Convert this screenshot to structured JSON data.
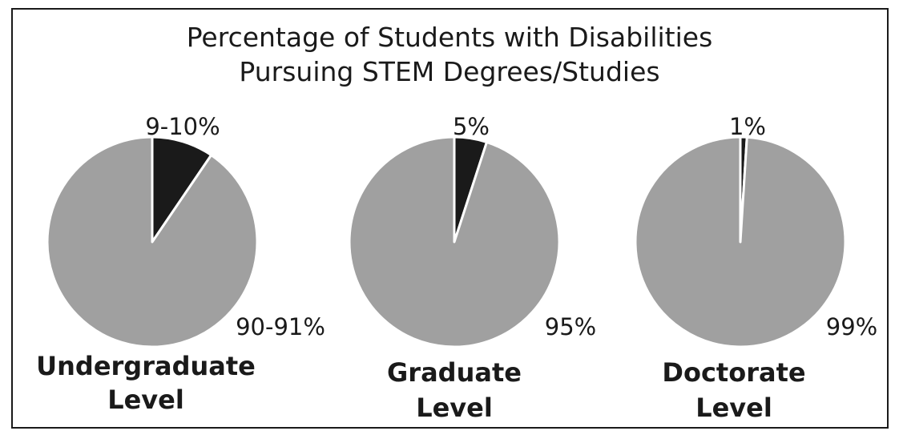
{
  "title": {
    "line1": "Percentage of Students with Disabilities",
    "line2": "Pursuing STEM Degrees/Studies"
  },
  "colors": {
    "stem": "#1a1a1a",
    "other": "#a0a0a0",
    "border": "#1a1a1a",
    "separator": "#ffffff"
  },
  "chart_data": [
    {
      "type": "pie",
      "title_lines": [
        "Undergraduate",
        "Level"
      ],
      "slices": [
        {
          "label": "9-10%",
          "value": 9.5,
          "color": "#1a1a1a"
        },
        {
          "label": "90-91%",
          "value": 90.5,
          "color": "#a0a0a0"
        }
      ]
    },
    {
      "type": "pie",
      "title_lines": [
        "Graduate",
        "Level"
      ],
      "slices": [
        {
          "label": "5%",
          "value": 5,
          "color": "#1a1a1a"
        },
        {
          "label": "95%",
          "value": 95,
          "color": "#a0a0a0"
        }
      ]
    },
    {
      "type": "pie",
      "title_lines": [
        "Doctorate",
        "Level"
      ],
      "slices": [
        {
          "label": "1%",
          "value": 1,
          "color": "#1a1a1a"
        },
        {
          "label": "99%",
          "value": 99,
          "color": "#a0a0a0"
        }
      ]
    }
  ]
}
